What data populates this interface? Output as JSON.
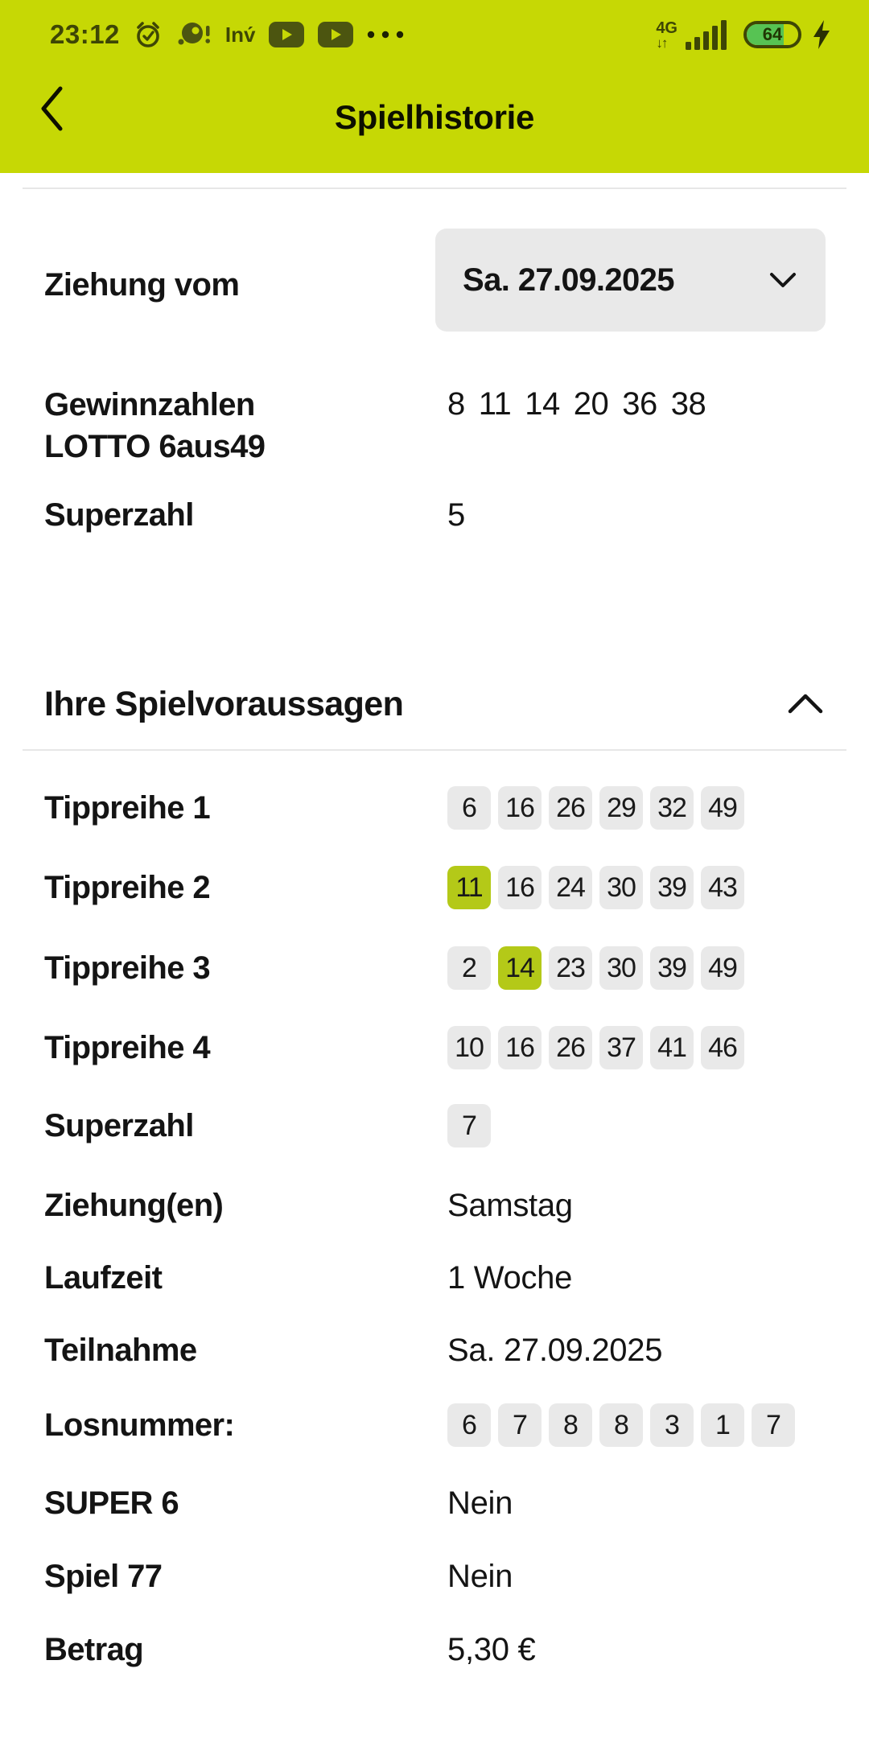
{
  "statusbar": {
    "time": "23:12",
    "app_label": "Inv́",
    "more_label": "•••",
    "network_label": "4G",
    "network_arrows": "↓↑",
    "battery_percent": "64",
    "icons": [
      "alarm-icon",
      "notification-icon",
      "video-play-icon",
      "video-play-icon",
      "signal-strength-icon",
      "battery-icon",
      "charging-icon"
    ]
  },
  "header": {
    "title": "Spielhistorie"
  },
  "draw": {
    "date_label": "Ziehung vom",
    "date_value": "Sa. 27.09.2025",
    "winning_label_line1": "Gewinnzahlen",
    "winning_label_line2": "LOTTO 6aus49",
    "winning_numbers": [
      {
        "n": "8"
      },
      {
        "n": "11"
      },
      {
        "n": "14"
      },
      {
        "n": "20"
      },
      {
        "n": "36"
      },
      {
        "n": "38"
      }
    ],
    "superzahl_label": "Superzahl",
    "superzahl_value": "5"
  },
  "predictions": {
    "title": "Ihre Spielvoraussagen",
    "rows": [
      {
        "label": "Tippreihe 1",
        "numbers": [
          {
            "n": "6"
          },
          {
            "n": "16"
          },
          {
            "n": "26"
          },
          {
            "n": "29"
          },
          {
            "n": "32"
          },
          {
            "n": "49"
          }
        ]
      },
      {
        "label": "Tippreihe 2",
        "numbers": [
          {
            "n": "11",
            "hit": true
          },
          {
            "n": "16"
          },
          {
            "n": "24"
          },
          {
            "n": "30"
          },
          {
            "n": "39"
          },
          {
            "n": "43"
          }
        ]
      },
      {
        "label": "Tippreihe 3",
        "numbers": [
          {
            "n": "2"
          },
          {
            "n": "14",
            "hit": true
          },
          {
            "n": "23"
          },
          {
            "n": "30"
          },
          {
            "n": "39"
          },
          {
            "n": "49"
          }
        ]
      },
      {
        "label": "Tippreihe 4",
        "numbers": [
          {
            "n": "10"
          },
          {
            "n": "16"
          },
          {
            "n": "26"
          },
          {
            "n": "37"
          },
          {
            "n": "41"
          },
          {
            "n": "46"
          }
        ]
      }
    ],
    "superzahl_label": "Superzahl",
    "superzahl_chips": [
      {
        "n": "7"
      }
    ],
    "details": [
      {
        "label": "Ziehung(en)",
        "value": "Samstag"
      },
      {
        "label": "Laufzeit",
        "value": "1 Woche"
      },
      {
        "label": "Teilnahme",
        "value": "Sa. 27.09.2025"
      }
    ],
    "losnummer_label": "Losnummer:",
    "losnummer_digits": [
      {
        "n": "6"
      },
      {
        "n": "7"
      },
      {
        "n": "8"
      },
      {
        "n": "8"
      },
      {
        "n": "3"
      },
      {
        "n": "1"
      },
      {
        "n": "7"
      }
    ],
    "extras": [
      {
        "label": "SUPER 6",
        "value": "Nein"
      },
      {
        "label": "Spiel 77",
        "value": "Nein"
      },
      {
        "label": "Betrag",
        "value": "5,30 €"
      }
    ]
  },
  "colors": {
    "brand_green": "#c6d805",
    "hit_green": "#b4c918",
    "chip_gray": "#e9e9e9",
    "batt_green": "#57c353"
  }
}
